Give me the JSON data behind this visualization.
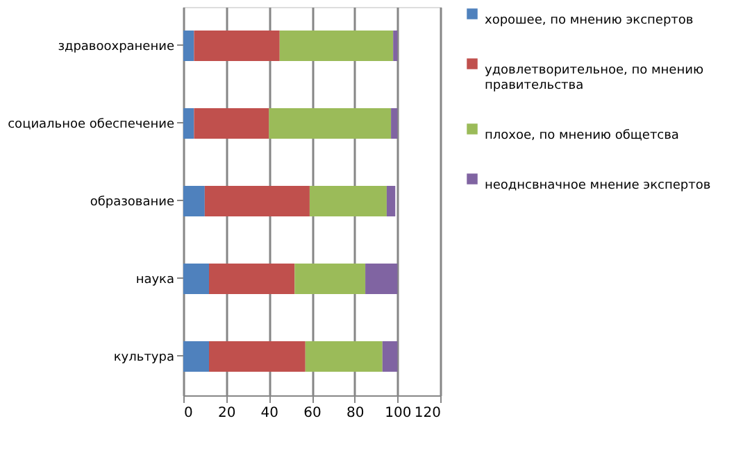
{
  "chart_data": {
    "type": "bar",
    "orientation": "horizontal",
    "stacked": true,
    "categories": [
      "здравоохранение",
      "социальное обеспечение",
      "образование",
      "наука",
      "культура"
    ],
    "series": [
      {
        "name": "хорошее, по мнению экспертов",
        "color": "#4f81bd",
        "values": [
          5,
          5,
          10,
          12,
          12
        ]
      },
      {
        "name": "удовлетворительное,  по мнению правительства",
        "color": "#c0504d",
        "values": [
          40,
          35,
          49,
          40,
          45
        ]
      },
      {
        "name": "плохое, по мнению общетсва",
        "color": "#9bbb59",
        "values": [
          53,
          57,
          36,
          33,
          36
        ]
      },
      {
        "name": "неоднсвначное мнение экспертов",
        "color": "#8064a2",
        "values": [
          2,
          3,
          4,
          15,
          7
        ]
      }
    ],
    "xlim": [
      0,
      120
    ],
    "xticks": [
      0,
      20,
      40,
      60,
      80,
      100,
      120
    ],
    "grid": "x",
    "legend": "right"
  }
}
